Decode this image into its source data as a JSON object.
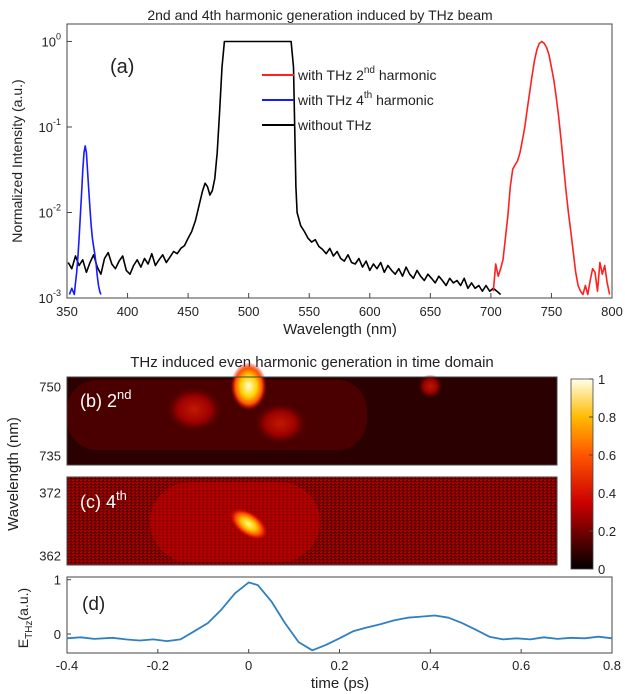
{
  "chart_data": [
    {
      "id": "a",
      "type": "line",
      "title": "2nd and 4th harmonic generation induced by THz beam",
      "panel_label": "(a)",
      "xlabel": "Wavelength (nm)",
      "ylabel": "Normalized Intensity (a.u.)",
      "xlim": [
        350,
        800
      ],
      "ylim": [
        0.001,
        1.6
      ],
      "yscale": "log",
      "x_ticks": [
        "350",
        "400",
        "450",
        "500",
        "550",
        "600",
        "650",
        "700",
        "750",
        "800"
      ],
      "y_ticks": [
        {
          "base": "10",
          "exp": "0",
          "value": 1
        },
        {
          "base": "10",
          "exp": "-1",
          "value": 0.1
        },
        {
          "base": "10",
          "exp": "-2",
          "value": 0.01
        },
        {
          "base": "10",
          "exp": "-3",
          "value": 0.001
        }
      ],
      "legend_position": "top-right",
      "series": [
        {
          "name": "with THz 2nd harmonic",
          "legend": {
            "pre": "with THz 2",
            "sup": "nd",
            "post": " harmonic"
          },
          "color": "#ff2020",
          "points": [
            [
              702,
              0.0012
            ],
            [
              704,
              0.0025
            ],
            [
              706,
              0.0018
            ],
            [
              708,
              0.0022
            ],
            [
              710,
              0.0028
            ],
            [
              712,
              0.005
            ],
            [
              714,
              0.009
            ],
            [
              716,
              0.02
            ],
            [
              718,
              0.032
            ],
            [
              720,
              0.036
            ],
            [
              722,
              0.04
            ],
            [
              724,
              0.05
            ],
            [
              726,
              0.07
            ],
            [
              728,
              0.1
            ],
            [
              730,
              0.16
            ],
            [
              732,
              0.25
            ],
            [
              734,
              0.4
            ],
            [
              736,
              0.6
            ],
            [
              738,
              0.8
            ],
            [
              740,
              0.95
            ],
            [
              742,
              1.0
            ],
            [
              744,
              0.95
            ],
            [
              746,
              0.85
            ],
            [
              748,
              0.7
            ],
            [
              750,
              0.5
            ],
            [
              752,
              0.35
            ],
            [
              754,
              0.22
            ],
            [
              756,
              0.13
            ],
            [
              758,
              0.07
            ],
            [
              760,
              0.035
            ],
            [
              762,
              0.018
            ],
            [
              764,
              0.01
            ],
            [
              766,
              0.006
            ],
            [
              768,
              0.0035
            ],
            [
              770,
              0.002
            ],
            [
              772,
              0.0014
            ],
            [
              774,
              0.0012
            ],
            [
              776,
              0.0011
            ],
            [
              778,
              0.0014
            ],
            [
              780,
              0.0011
            ],
            [
              782,
              0.0016
            ],
            [
              784,
              0.0022
            ],
            [
              786,
              0.002
            ],
            [
              788,
              0.0012
            ],
            [
              790,
              0.0026
            ],
            [
              792,
              0.0019
            ],
            [
              794,
              0.0024
            ],
            [
              796,
              0.0015
            ],
            [
              798,
              0.0011
            ]
          ]
        },
        {
          "name": "with THz 4th harmonic",
          "legend": {
            "pre": "with THz 4",
            "sup": "th",
            "post": " harmonic"
          },
          "color": "#1a1aff",
          "points": [
            [
              352,
              0.0011
            ],
            [
              354,
              0.0013
            ],
            [
              356,
              0.0011
            ],
            [
              357,
              0.0015
            ],
            [
              358,
              0.002
            ],
            [
              359,
              0.003
            ],
            [
              360,
              0.005
            ],
            [
              361,
              0.009
            ],
            [
              362,
              0.016
            ],
            [
              363,
              0.03
            ],
            [
              364,
              0.05
            ],
            [
              365,
              0.06
            ],
            [
              366,
              0.05
            ],
            [
              367,
              0.03
            ],
            [
              368,
              0.018
            ],
            [
              369,
              0.011
            ],
            [
              370,
              0.007
            ],
            [
              371,
              0.005
            ],
            [
              372,
              0.004
            ],
            [
              373,
              0.0032
            ],
            [
              374,
              0.0025
            ],
            [
              375,
              0.0018
            ],
            [
              376,
              0.0014
            ],
            [
              377,
              0.0012
            ],
            [
              378,
              0.0011
            ]
          ]
        },
        {
          "name": "without THz",
          "legend": {
            "pre": "without THz",
            "sup": "",
            "post": ""
          },
          "color": "#000000",
          "points": [
            [
              351,
              0.0026
            ],
            [
              354,
              0.0022
            ],
            [
              357,
              0.0031
            ],
            [
              360,
              0.0024
            ],
            [
              363,
              0.0028
            ],
            [
              366,
              0.002
            ],
            [
              369,
              0.0026
            ],
            [
              372,
              0.0032
            ],
            [
              375,
              0.0023
            ],
            [
              378,
              0.0019
            ],
            [
              381,
              0.0029
            ],
            [
              384,
              0.0034
            ],
            [
              387,
              0.0025
            ],
            [
              390,
              0.0022
            ],
            [
              393,
              0.0027
            ],
            [
              396,
              0.0031
            ],
            [
              399,
              0.0021
            ],
            [
              402,
              0.0019
            ],
            [
              405,
              0.0024
            ],
            [
              408,
              0.0028
            ],
            [
              411,
              0.0023
            ],
            [
              414,
              0.0029
            ],
            [
              417,
              0.0025
            ],
            [
              420,
              0.0033
            ],
            [
              423,
              0.0024
            ],
            [
              426,
              0.0028
            ],
            [
              429,
              0.0032
            ],
            [
              432,
              0.0026
            ],
            [
              435,
              0.003
            ],
            [
              438,
              0.0035
            ],
            [
              441,
              0.0033
            ],
            [
              444,
              0.0038
            ],
            [
              447,
              0.0041
            ],
            [
              450,
              0.005
            ],
            [
              453,
              0.006
            ],
            [
              456,
              0.008
            ],
            [
              459,
              0.012
            ],
            [
              462,
              0.018
            ],
            [
              464,
              0.022
            ],
            [
              466,
              0.02
            ],
            [
              468,
              0.016
            ],
            [
              470,
              0.018
            ],
            [
              472,
              0.025
            ],
            [
              474,
              0.05
            ],
            [
              476,
              0.15
            ],
            [
              478,
              0.5
            ],
            [
              480,
              1.0
            ],
            [
              490,
              1.0
            ],
            [
              500,
              1.0
            ],
            [
              510,
              1.0
            ],
            [
              520,
              1.0
            ],
            [
              530,
              1.0
            ],
            [
              535,
              1.0
            ],
            [
              537,
              0.5
            ],
            [
              538,
              0.1
            ],
            [
              539,
              0.02
            ],
            [
              540,
              0.01
            ],
            [
              543,
              0.007
            ],
            [
              546,
              0.006
            ],
            [
              549,
              0.005
            ],
            [
              552,
              0.0045
            ],
            [
              555,
              0.0048
            ],
            [
              558,
              0.004
            ],
            [
              561,
              0.0037
            ],
            [
              564,
              0.0033
            ],
            [
              567,
              0.0038
            ],
            [
              570,
              0.0031
            ],
            [
              573,
              0.0035
            ],
            [
              576,
              0.0029
            ],
            [
              579,
              0.0027
            ],
            [
              582,
              0.0032
            ],
            [
              585,
              0.0026
            ],
            [
              588,
              0.0025
            ],
            [
              591,
              0.0029
            ],
            [
              594,
              0.0023
            ],
            [
              597,
              0.0027
            ],
            [
              600,
              0.0021
            ],
            [
              603,
              0.0025
            ],
            [
              606,
              0.0022
            ],
            [
              609,
              0.0026
            ],
            [
              612,
              0.002
            ],
            [
              615,
              0.0024
            ],
            [
              618,
              0.0021
            ],
            [
              621,
              0.0019
            ],
            [
              624,
              0.0022
            ],
            [
              627,
              0.0018
            ],
            [
              630,
              0.0023
            ],
            [
              633,
              0.0019
            ],
            [
              636,
              0.0017
            ],
            [
              639,
              0.0021
            ],
            [
              642,
              0.0018
            ],
            [
              645,
              0.0016
            ],
            [
              648,
              0.0019
            ],
            [
              651,
              0.0017
            ],
            [
              654,
              0.0015
            ],
            [
              657,
              0.0018
            ],
            [
              660,
              0.0016
            ],
            [
              663,
              0.0014
            ],
            [
              666,
              0.0017
            ],
            [
              669,
              0.0015
            ],
            [
              672,
              0.0016
            ],
            [
              675,
              0.0014
            ],
            [
              678,
              0.0017
            ],
            [
              681,
              0.0013
            ],
            [
              684,
              0.0015
            ],
            [
              687,
              0.0013
            ],
            [
              690,
              0.0014
            ],
            [
              693,
              0.0012
            ],
            [
              696,
              0.0014
            ],
            [
              699,
              0.0012
            ],
            [
              702,
              0.0013
            ],
            [
              705,
              0.0012
            ],
            [
              708,
              0.0011
            ]
          ]
        }
      ]
    },
    {
      "id": "b",
      "type": "heatmap",
      "title": "THz induced even harmonic generation in time domain",
      "panel_label": {
        "pre": "(b) 2",
        "sup": "nd"
      },
      "y_ticks": [
        "750",
        "735"
      ],
      "ylabel": "Wavelength (nm)",
      "colormap": "hot",
      "blobs": [
        {
          "t": 0.0,
          "w": 750,
          "amplitude": 1.0
        },
        {
          "t": 0.07,
          "w": 742,
          "amplitude": 0.45
        },
        {
          "t": -0.12,
          "w": 745,
          "amplitude": 0.35
        },
        {
          "t": 0.4,
          "w": 750,
          "amplitude": 0.4
        }
      ]
    },
    {
      "id": "c",
      "type": "heatmap",
      "panel_label": {
        "pre": "(c) 4",
        "sup": "th"
      },
      "y_ticks": [
        "372",
        "362"
      ],
      "colormap": "hot",
      "blobs": [
        {
          "t": 0.0,
          "w": 367,
          "amplitude": 1.0
        }
      ]
    },
    {
      "id": "colorbar",
      "type": "colorbar",
      "range": [
        0,
        1
      ],
      "ticks": [
        "1",
        "0.8",
        "0.6",
        "0.4",
        "0.2",
        "0"
      ]
    },
    {
      "id": "d",
      "type": "line",
      "panel_label": "(d)",
      "xlabel": "time (ps)",
      "ylabel": {
        "base": "E",
        "sub": "THz",
        "post": "(a.u.)"
      },
      "xlim": [
        -0.4,
        0.8
      ],
      "ylim": [
        -0.35,
        1.05
      ],
      "x_ticks": [
        "-0.4",
        "-0.2",
        "0",
        "0.2",
        "0.4",
        "0.6",
        "0.8"
      ],
      "y_ticks": [
        "1",
        "0"
      ],
      "series": [
        {
          "name": "",
          "color": "#2f7fc1",
          "points": [
            [
              -0.4,
              -0.08
            ],
            [
              -0.37,
              -0.06
            ],
            [
              -0.34,
              -0.09
            ],
            [
              -0.3,
              -0.07
            ],
            [
              -0.27,
              -0.1
            ],
            [
              -0.24,
              -0.12
            ],
            [
              -0.21,
              -0.1
            ],
            [
              -0.18,
              -0.13
            ],
            [
              -0.15,
              -0.1
            ],
            [
              -0.12,
              0.05
            ],
            [
              -0.09,
              0.2
            ],
            [
              -0.06,
              0.45
            ],
            [
              -0.03,
              0.75
            ],
            [
              0,
              0.95
            ],
            [
              0.02,
              0.9
            ],
            [
              0.05,
              0.6
            ],
            [
              0.08,
              0.2
            ],
            [
              0.11,
              -0.15
            ],
            [
              0.14,
              -0.3
            ],
            [
              0.17,
              -0.2
            ],
            [
              0.2,
              -0.08
            ],
            [
              0.23,
              0.05
            ],
            [
              0.26,
              0.12
            ],
            [
              0.29,
              0.18
            ],
            [
              0.32,
              0.25
            ],
            [
              0.35,
              0.3
            ],
            [
              0.38,
              0.32
            ],
            [
              0.41,
              0.34
            ],
            [
              0.44,
              0.3
            ],
            [
              0.47,
              0.2
            ],
            [
              0.5,
              0.08
            ],
            [
              0.53,
              -0.05
            ],
            [
              0.56,
              -0.1
            ],
            [
              0.59,
              -0.08
            ],
            [
              0.62,
              -0.1
            ],
            [
              0.65,
              -0.06
            ],
            [
              0.68,
              -0.09
            ],
            [
              0.71,
              -0.07
            ],
            [
              0.74,
              -0.08
            ],
            [
              0.77,
              -0.05
            ],
            [
              0.8,
              -0.08
            ]
          ]
        }
      ]
    }
  ]
}
